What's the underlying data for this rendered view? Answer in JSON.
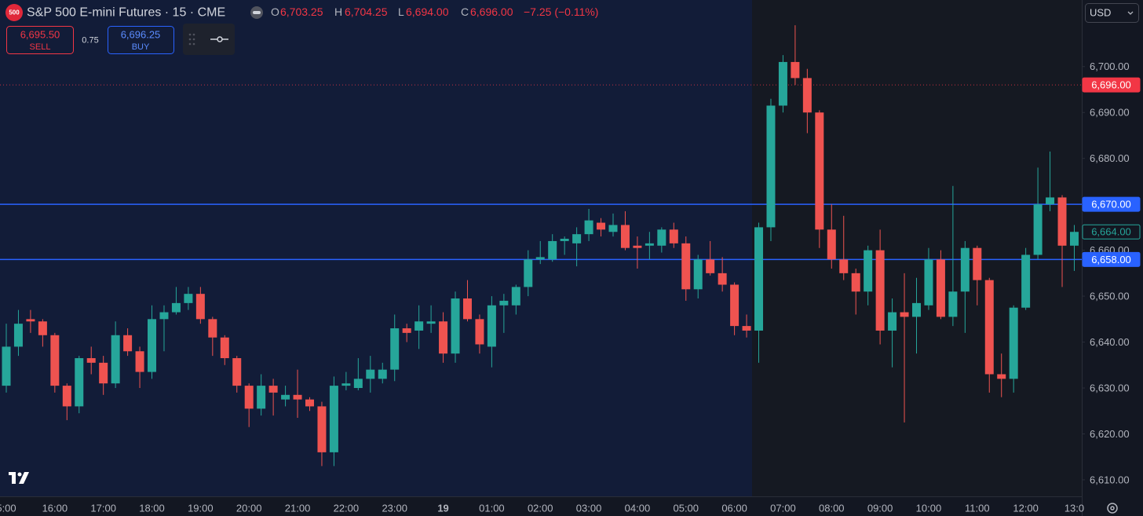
{
  "header": {
    "symbol_badge": "500",
    "title": "S&P 500 E-mini Futures · 15 · CME",
    "ohlc": [
      {
        "key": "O",
        "value": "6,703.25"
      },
      {
        "key": "H",
        "value": "6,704.25"
      },
      {
        "key": "L",
        "value": "6,694.00"
      },
      {
        "key": "C",
        "value": "6,696.00"
      }
    ],
    "change": "−7.25 (−0.11%)"
  },
  "trade": {
    "sell_price": "6,695.50",
    "sell": "SELL",
    "spread": "0.75",
    "buy_price": "6,696.25",
    "buy": "BUY"
  },
  "currency": "USD",
  "chart_data": {
    "type": "candlestick",
    "up_color": "#26a69a",
    "down_color": "#ef5350",
    "categories": [
      "5:00",
      null,
      null,
      null,
      "16:00",
      null,
      null,
      null,
      "17:00",
      null,
      null,
      null,
      "18:00",
      null,
      null,
      null,
      "19:00",
      null,
      null,
      null,
      "20:00",
      null,
      null,
      null,
      "21:00",
      null,
      null,
      null,
      "22:00",
      null,
      null,
      null,
      "23:00",
      null,
      null,
      null,
      "19",
      null,
      null,
      null,
      "01:00",
      null,
      null,
      null,
      "02:00",
      null,
      null,
      null,
      "03:00",
      null,
      null,
      null,
      "04:00",
      null,
      null,
      null,
      "05:00",
      null,
      null,
      null,
      "06:00",
      null,
      null,
      null,
      "07:00",
      null,
      null,
      null,
      "08:00",
      null,
      null,
      null,
      "09:00",
      null,
      null,
      null,
      "10:00",
      null,
      null,
      null,
      "11:00",
      null,
      null,
      null,
      "12:00",
      null,
      null,
      null,
      "13:0"
    ],
    "open": [
      6630.5,
      6639,
      6645,
      6644.5,
      6641.5,
      6630.5,
      6626,
      6636.5,
      6635.5,
      6631,
      6641.5,
      6638,
      6633.5,
      6645,
      6646.5,
      6648.5,
      6650.5,
      6645,
      6641,
      6636.5,
      6630.5,
      6625.5,
      6630.5,
      6627.5,
      6628.5,
      6627.5,
      6626,
      6616,
      6630.5,
      6630,
      6632,
      6632,
      6634,
      6643,
      6642.5,
      6644,
      6644.5,
      6637.5,
      6649.5,
      6645,
      6639,
      6648,
      6648,
      6652,
      6658,
      6658,
      6662,
      6661.5,
      6663.5,
      6666,
      6664,
      6665.5,
      6661,
      6661,
      6661,
      6664.5,
      6661.5,
      6651.5,
      6658,
      6655,
      6652.5,
      6643.5,
      6642.5,
      6665,
      6691.5,
      6701,
      6697.5,
      6690,
      6664.5,
      6658,
      6655,
      6651,
      6660,
      6642.5,
      6646.5,
      6645.5,
      6648,
      6658,
      6645.5,
      6651,
      6660.5,
      6653.5,
      6633,
      6632,
      6647.5,
      6659,
      6670,
      6671.5,
      6661
    ],
    "high": [
      6644,
      6647,
      6647,
      6645,
      6642,
      6631,
      6637,
      6639,
      6637,
      6644.5,
      6643,
      6639,
      6648,
      6648,
      6652,
      6652,
      6652,
      6645.5,
      6641.5,
      6637,
      6631,
      6633,
      6632,
      6630.5,
      6634,
      6628,
      6627,
      6632.5,
      6633.5,
      6636.5,
      6637,
      6635.5,
      6646,
      6644,
      6648,
      6648,
      6646.5,
      6651,
      6653.5,
      6646,
      6650,
      6650.5,
      6652.5,
      6660,
      6662,
      6663.5,
      6663,
      6665,
      6669,
      6667,
      6668,
      6668.5,
      6663,
      6664,
      6665,
      6666,
      6663,
      6659,
      6662,
      6658.5,
      6653,
      6646,
      6666,
      6693,
      6702.5,
      6709,
      6699.5,
      6690.5,
      6670,
      6667.5,
      6656,
      6661,
      6664.5,
      6649.5,
      6655,
      6654,
      6660.5,
      6660,
      6674,
      6662,
      6661,
      6654,
      6637.5,
      6648,
      6660.5,
      6678,
      6681.5,
      6672,
      6665.5
    ],
    "low": [
      6629,
      6637,
      6642,
      6639,
      6629,
      6623,
      6624.5,
      6633,
      6628.5,
      6630,
      6637,
      6630,
      6632,
      6638,
      6646,
      6647,
      6644,
      6637,
      6635,
      6629,
      6621.5,
      6624,
      6624,
      6626,
      6623.5,
      6625,
      6613,
      6613,
      6629.5,
      6629.5,
      6629,
      6631,
      6631.5,
      6640,
      6638.5,
      6642,
      6635.5,
      6635.5,
      6644.5,
      6637.5,
      6634.5,
      6642,
      6646,
      6650,
      6657,
      6657.5,
      6659,
      6656.5,
      6662,
      6663,
      6663,
      6660,
      6656,
      6658,
      6659.5,
      6660.5,
      6649,
      6649.5,
      6654.5,
      6651,
      6641.5,
      6641,
      6635.5,
      6662,
      6690,
      6696,
      6685.5,
      6660.5,
      6656,
      6653.5,
      6646,
      6648,
      6639.5,
      6634.5,
      6622.5,
      6637.5,
      6647,
      6645,
      6643.5,
      6642,
      6648,
      6629,
      6628,
      6629,
      6647,
      6658,
      6668.5,
      6652,
      6655.5
    ],
    "close": [
      6639,
      6644,
      6644.5,
      6641.5,
      6630.5,
      6626,
      6636.5,
      6635.5,
      6631,
      6641.5,
      6638,
      6633.5,
      6645,
      6646.5,
      6648.5,
      6650.5,
      6645,
      6641,
      6636.5,
      6630.5,
      6625.5,
      6630.5,
      6629,
      6628.5,
      6627.5,
      6626,
      6616,
      6630.5,
      6631,
      6632,
      6634,
      6634,
      6643,
      6642,
      6644.5,
      6644.5,
      6637.5,
      6649.5,
      6645,
      6639.5,
      6648,
      6649,
      6652,
      6658,
      6658.5,
      6662,
      6662.5,
      6663.5,
      6666.5,
      6664.5,
      6665.5,
      6660.5,
      6660.5,
      6661.5,
      6664.5,
      6661.5,
      6651.5,
      6658,
      6655,
      6652.5,
      6643.5,
      6642.5,
      6665,
      6691.5,
      6701,
      6697.5,
      6690,
      6664.5,
      6658,
      6655,
      6651,
      6660,
      6642.5,
      6646.5,
      6645.5,
      6648.5,
      6658,
      6645.5,
      6651,
      6660.5,
      6653.5,
      6633,
      6632,
      6647.5,
      6659,
      6670,
      6671.5,
      6661,
      6664
    ],
    "ylim": [
      6606.4,
      6714.5
    ],
    "yticks": [
      {
        "value": 6610,
        "label": "6,610.00"
      },
      {
        "value": 6620,
        "label": "6,620.00"
      },
      {
        "value": 6630,
        "label": "6,630.00"
      },
      {
        "value": 6640,
        "label": "6,640.00"
      },
      {
        "value": 6650,
        "label": "6,650.00"
      },
      {
        "value": 6660,
        "label": "6,660.00"
      },
      {
        "value": 6680,
        "label": "6,680.00"
      },
      {
        "value": 6690,
        "label": "6,690.00"
      },
      {
        "value": 6700,
        "label": "6,700.00"
      }
    ],
    "hlines": [
      {
        "value": 6670,
        "label": "6,670.00",
        "color": "#2962ff"
      },
      {
        "value": 6658,
        "label": "6,658.00",
        "color": "#2962ff"
      }
    ],
    "price_line": {
      "value": 6696,
      "label": "6,696.00",
      "color": "#f23645"
    },
    "last_price": {
      "value": 6664,
      "label": "6,664.00",
      "color": "#26a69a"
    }
  }
}
